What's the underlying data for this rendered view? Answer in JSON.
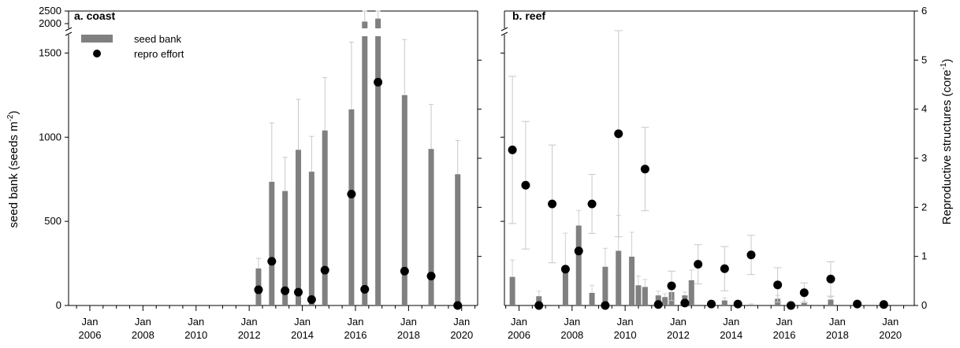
{
  "chart_data": [
    {
      "type": "bar",
      "title": "a. coast",
      "ylabel": "seed bank (seeds m",
      "ylabel_sup": "-2",
      "ylabel_close": ")",
      "ylim": [
        0,
        1600
      ],
      "yticks": [
        0,
        500,
        1000,
        1500
      ],
      "broken_yticks": [
        2000,
        2500
      ],
      "xlim": [
        2005.2,
        2020.6
      ],
      "xticks": [
        {
          "year": 2006,
          "line1": "Jan",
          "line2": "2006"
        },
        {
          "year": 2008,
          "line1": "Jan",
          "line2": "2008"
        },
        {
          "year": 2010,
          "line1": "Jan",
          "line2": "2010"
        },
        {
          "year": 2012,
          "line1": "Jan",
          "line2": "2012"
        },
        {
          "year": 2014,
          "line1": "Jan",
          "line2": "2014"
        },
        {
          "year": 2016,
          "line1": "Jan",
          "line2": "2016"
        },
        {
          "year": 2018,
          "line1": "Jan",
          "line2": "2018"
        },
        {
          "year": 2020,
          "line1": "Jan",
          "line2": "2020"
        }
      ],
      "legend": {
        "bar": "seed bank",
        "dot": "repro effort",
        "position": "top-left"
      },
      "bar_color": "#808080",
      "dot_color": "#000000",
      "seed_bank": [
        {
          "x": 2012.35,
          "value": 220,
          "err": 60
        },
        {
          "x": 2012.85,
          "value": 735,
          "err": 350
        },
        {
          "x": 2013.35,
          "value": 680,
          "err": 200
        },
        {
          "x": 2013.85,
          "value": 925,
          "err": 300
        },
        {
          "x": 2014.35,
          "value": 795,
          "err": 210
        },
        {
          "x": 2014.85,
          "value": 1040,
          "err": 315
        },
        {
          "x": 2015.85,
          "value": 1165,
          "err": 400
        },
        {
          "x": 2016.35,
          "value": 2080,
          "err": 600
        },
        {
          "x": 2016.85,
          "value": 2200,
          "err": 500
        },
        {
          "x": 2017.85,
          "value": 1250,
          "err": 330
        },
        {
          "x": 2018.85,
          "value": 930,
          "err": 265
        },
        {
          "x": 2019.85,
          "value": 780,
          "err": 200
        }
      ],
      "repro_effort": [
        {
          "x": 2012.35,
          "value": 0.32
        },
        {
          "x": 2012.85,
          "value": 0.9
        },
        {
          "x": 2013.35,
          "value": 0.3
        },
        {
          "x": 2013.85,
          "value": 0.27
        },
        {
          "x": 2014.35,
          "value": 0.12
        },
        {
          "x": 2014.85,
          "value": 0.72
        },
        {
          "x": 2015.85,
          "value": 2.27
        },
        {
          "x": 2016.35,
          "value": 0.33
        },
        {
          "x": 2016.85,
          "value": 4.55
        },
        {
          "x": 2017.85,
          "value": 0.7
        },
        {
          "x": 2018.85,
          "value": 0.6
        },
        {
          "x": 2019.85,
          "value": 0.0
        }
      ]
    },
    {
      "type": "bar",
      "title": "b. reef",
      "ylabel": "Reproductive structures (core",
      "ylabel_sup": "-1",
      "ylabel_close": ")",
      "ylim": [
        0,
        6
      ],
      "yticks": [
        0,
        1,
        2,
        3,
        4,
        5,
        6
      ],
      "xlim": [
        2005.45,
        2020.9
      ],
      "xticks": [
        {
          "year": 2006,
          "line1": "Jan",
          "line2": "2006"
        },
        {
          "year": 2008,
          "line1": "Jan",
          "line2": "2008"
        },
        {
          "year": 2010,
          "line1": "Jan",
          "line2": "2010"
        },
        {
          "year": 2012,
          "line1": "Jan",
          "line2": "2012"
        },
        {
          "year": 2014,
          "line1": "Jan",
          "line2": "2014"
        },
        {
          "year": 2016,
          "line1": "Jan",
          "line2": "2016"
        },
        {
          "year": 2018,
          "line1": "Jan",
          "line2": "2018"
        },
        {
          "year": 2020,
          "line1": "Jan",
          "line2": "2020"
        }
      ],
      "bar_color": "#808080",
      "dot_color": "#000000",
      "seed_bank": [
        {
          "x": 2005.75,
          "value": 170,
          "err": 100
        },
        {
          "x": 2006.75,
          "value": 55,
          "err": 30
        },
        {
          "x": 2007.75,
          "value": 220,
          "err": 210
        },
        {
          "x": 2008.25,
          "value": 475,
          "err": 90
        },
        {
          "x": 2008.75,
          "value": 75,
          "err": 45
        },
        {
          "x": 2009.25,
          "value": 230,
          "err": 110
        },
        {
          "x": 2009.75,
          "value": 325,
          "err": 210
        },
        {
          "x": 2010.25,
          "value": 290,
          "err": 145
        },
        {
          "x": 2010.5,
          "value": 120,
          "err": 55
        },
        {
          "x": 2010.75,
          "value": 110,
          "err": 45
        },
        {
          "x": 2011.25,
          "value": 60,
          "err": 25
        },
        {
          "x": 2011.5,
          "value": 50,
          "err": 20
        },
        {
          "x": 2011.75,
          "value": 80,
          "err": 30
        },
        {
          "x": 2012.25,
          "value": 60,
          "err": 20
        },
        {
          "x": 2012.5,
          "value": 150,
          "err": 60
        },
        {
          "x": 2013.75,
          "value": 30,
          "err": 15
        },
        {
          "x": 2014.75,
          "value": 5,
          "err": 5
        },
        {
          "x": 2015.75,
          "value": 40,
          "err": 20
        },
        {
          "x": 2016.75,
          "value": 15,
          "err": 10
        },
        {
          "x": 2017.75,
          "value": 35,
          "err": 15
        }
      ],
      "repro_effort": [
        {
          "x": 2005.75,
          "value": 3.17,
          "err": 1.5
        },
        {
          "x": 2006.25,
          "value": 2.45,
          "err": 1.3
        },
        {
          "x": 2006.75,
          "value": 0.0
        },
        {
          "x": 2007.25,
          "value": 2.07,
          "err": 1.2
        },
        {
          "x": 2007.75,
          "value": 0.74
        },
        {
          "x": 2008.25,
          "value": 1.11
        },
        {
          "x": 2008.75,
          "value": 2.07,
          "err": 0.6
        },
        {
          "x": 2009.25,
          "value": 0.0
        },
        {
          "x": 2009.75,
          "value": 3.5,
          "err": 2.1
        },
        {
          "x": 2010.75,
          "value": 2.78,
          "err": 0.85
        },
        {
          "x": 2011.25,
          "value": 0.02
        },
        {
          "x": 2011.75,
          "value": 0.4,
          "err": 0.3
        },
        {
          "x": 2012.25,
          "value": 0.05
        },
        {
          "x": 2012.75,
          "value": 0.84,
          "err": 0.4
        },
        {
          "x": 2013.25,
          "value": 0.03
        },
        {
          "x": 2013.75,
          "value": 0.75,
          "err": 0.45
        },
        {
          "x": 2014.25,
          "value": 0.03
        },
        {
          "x": 2014.75,
          "value": 1.03,
          "err": 0.4
        },
        {
          "x": 2015.75,
          "value": 0.42,
          "err": 0.35
        },
        {
          "x": 2016.25,
          "value": 0.0
        },
        {
          "x": 2016.75,
          "value": 0.26,
          "err": 0.2
        },
        {
          "x": 2017.75,
          "value": 0.54,
          "err": 0.35
        },
        {
          "x": 2018.75,
          "value": 0.03
        },
        {
          "x": 2019.75,
          "value": 0.02
        }
      ]
    }
  ]
}
